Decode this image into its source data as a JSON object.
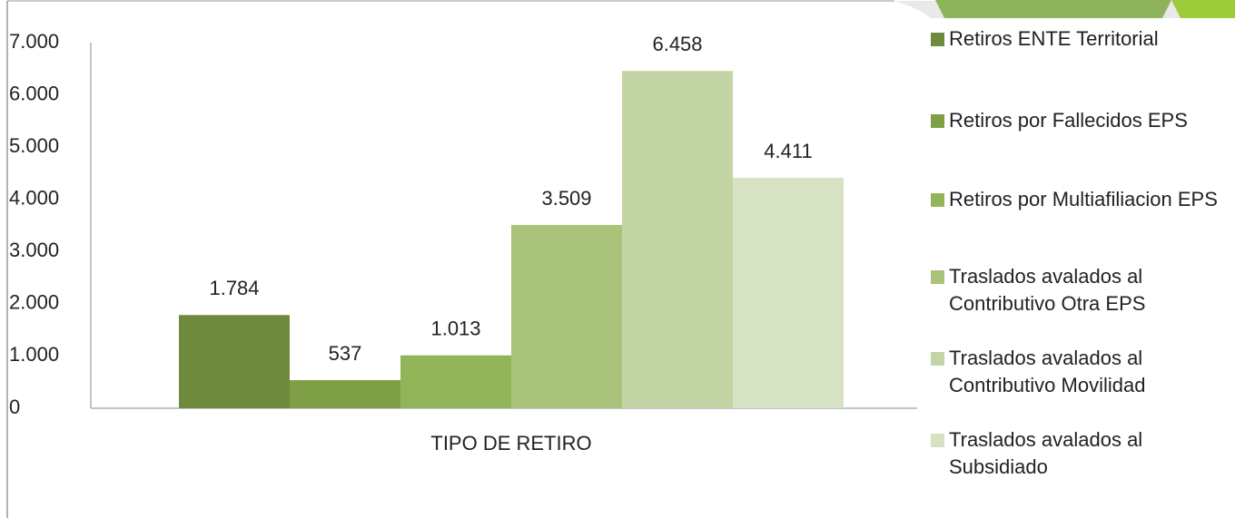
{
  "chart_data": {
    "type": "bar",
    "categories": [
      "TIPO DE RETIRO"
    ],
    "series": [
      {
        "name": "Retiros ENTE Territorial",
        "color": "#6e8b3d",
        "values": [
          1784
        ],
        "value_labels": [
          "1.784"
        ]
      },
      {
        "name": "Retiros por Fallecidos EPS",
        "color": "#7f9f46",
        "values": [
          537
        ],
        "value_labels": [
          "537"
        ]
      },
      {
        "name": "Retiros por Multiafiliacion EPS",
        "color": "#93b55a",
        "values": [
          1013
        ],
        "value_labels": [
          "1.013"
        ]
      },
      {
        "name": "Traslados avalados al Contributivo Otra EPS",
        "color": "#a9c47a",
        "values": [
          3509
        ],
        "value_labels": [
          "3.509"
        ]
      },
      {
        "name": "Traslados avalados al Contributivo Movilidad",
        "color": "#c3d4a5",
        "values": [
          6458
        ],
        "value_labels": [
          "6.458"
        ]
      },
      {
        "name": "Traslados avalados al Subsidiado",
        "color": "#d6e2c3",
        "values": [
          4411
        ],
        "value_labels": [
          "4.411"
        ]
      }
    ],
    "ylim": [
      0,
      7000
    ],
    "yticks": [
      0,
      {
        "value": 1000,
        "label": "1.000"
      },
      {
        "value": 2000,
        "label": "2.000"
      },
      {
        "value": 3000,
        "label": "3.000"
      },
      {
        "value": 4000,
        "label": "4.000"
      },
      {
        "value": 5000,
        "label": "5.000"
      },
      {
        "value": 6000,
        "label": "6.000"
      },
      {
        "value": 7000,
        "label": "7.000"
      }
    ],
    "grid": false,
    "legend": "right"
  }
}
